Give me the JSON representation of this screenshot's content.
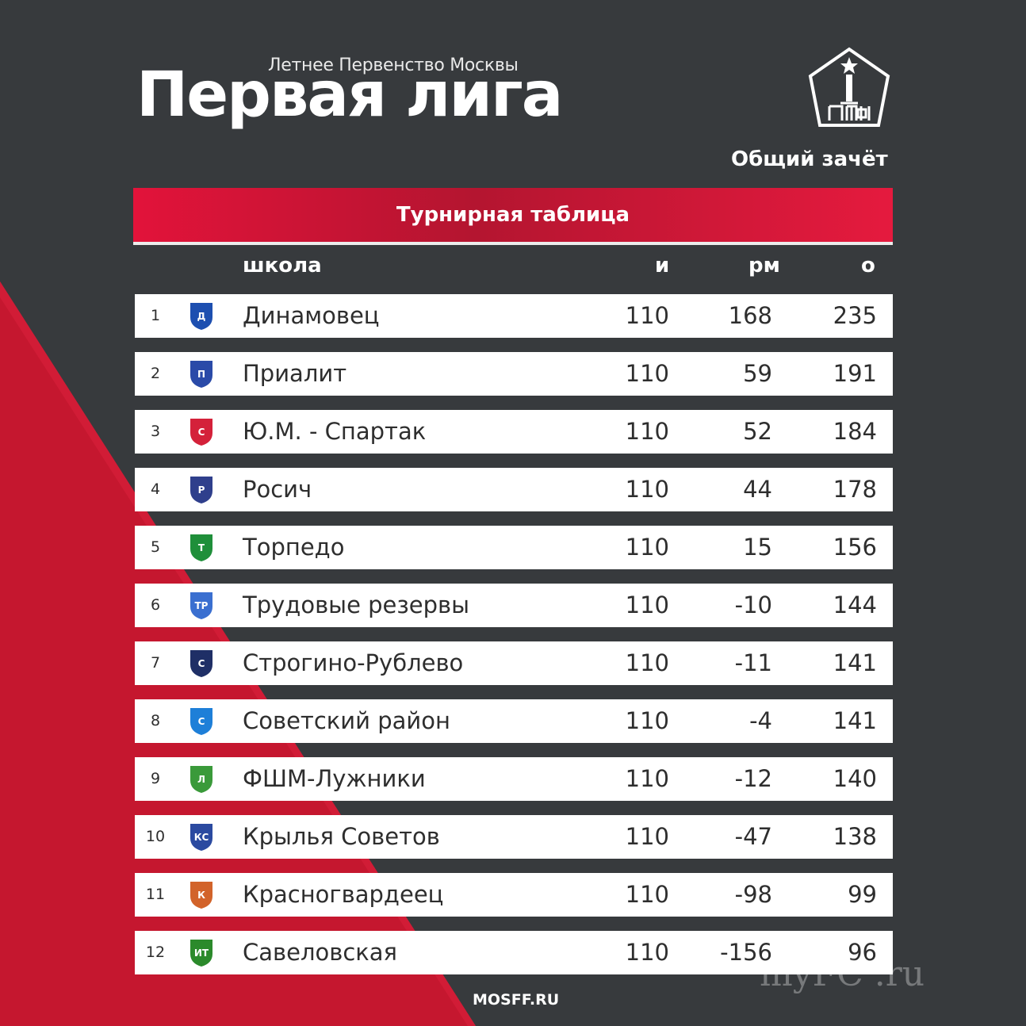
{
  "header": {
    "subtitle": "Летнее Первенство Москвы",
    "title": "Первая лига",
    "standings_label": "Общий зачёт",
    "logo_icon": "mff-logo-icon"
  },
  "banner": {
    "title": "Турнирная таблица"
  },
  "columns": {
    "school": "школа",
    "games": "и",
    "diff": "рм",
    "points": "о"
  },
  "rows": [
    {
      "pos": "1",
      "team": "Динамовец",
      "games": "110",
      "diff": "168",
      "points": "235",
      "crest": "Д",
      "crest_color": "#1d4fb0"
    },
    {
      "pos": "2",
      "team": "Приалит",
      "games": "110",
      "diff": "59",
      "points": "191",
      "crest": "П",
      "crest_color": "#2a4aa8"
    },
    {
      "pos": "3",
      "team": "Ю.М. - Спартак",
      "games": "110",
      "diff": "52",
      "points": "184",
      "crest": "С",
      "crest_color": "#d4213a"
    },
    {
      "pos": "4",
      "team": "Росич",
      "games": "110",
      "diff": "44",
      "points": "178",
      "crest": "Р",
      "crest_color": "#2f3f8c"
    },
    {
      "pos": "5",
      "team": "Торпедо",
      "games": "110",
      "diff": "15",
      "points": "156",
      "crest": "Т",
      "crest_color": "#1f8f3a"
    },
    {
      "pos": "6",
      "team": "Трудовые резервы",
      "games": "110",
      "diff": "-10",
      "points": "144",
      "crest": "ТР",
      "crest_color": "#3a6fd0"
    },
    {
      "pos": "7",
      "team": "Строгино-Рублево",
      "games": "110",
      "diff": "-11",
      "points": "141",
      "crest": "С",
      "crest_color": "#1f2f66"
    },
    {
      "pos": "8",
      "team": "Советский район",
      "games": "110",
      "diff": "-4",
      "points": "141",
      "crest": "С",
      "crest_color": "#1e7fd8"
    },
    {
      "pos": "9",
      "team": "ФШМ-Лужники",
      "games": "110",
      "diff": "-12",
      "points": "140",
      "crest": "Л",
      "crest_color": "#3a9a3a"
    },
    {
      "pos": "10",
      "team": "Крылья Советов",
      "games": "110",
      "diff": "-47",
      "points": "138",
      "crest": "КС",
      "crest_color": "#2b4aa0"
    },
    {
      "pos": "11",
      "team": "Красногвардеец",
      "games": "110",
      "diff": "-98",
      "points": "99",
      "crest": "К",
      "crest_color": "#d2632a"
    },
    {
      "pos": "12",
      "team": "Савеловская",
      "games": "110",
      "diff": "-156",
      "points": "96",
      "crest": "ИТ",
      "crest_color": "#2b8a2b"
    }
  ],
  "footer": {
    "site": "MOSFF.RU"
  },
  "watermark": "myFC .ru",
  "colors": {
    "background": "#373a3d",
    "accent": "#e2133a",
    "row": "#ffffff"
  }
}
